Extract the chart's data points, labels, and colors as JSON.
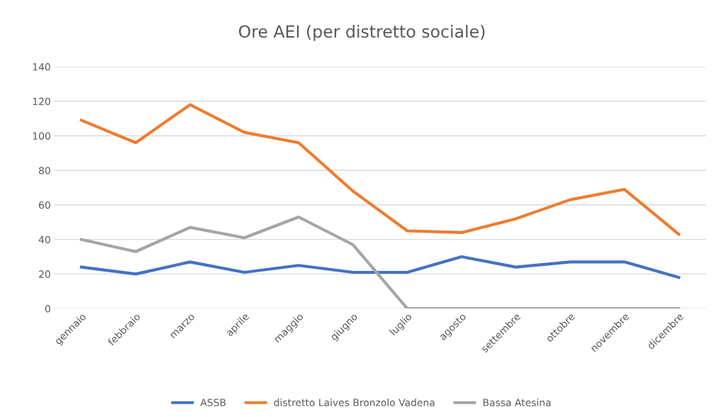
{
  "chart_data": {
    "type": "line",
    "title": "Ore AEI (per distretto sociale)",
    "categories": [
      "gennaio",
      "febbraio",
      "marzo",
      "aprile",
      "maggio",
      "giugno",
      "luglio",
      "agosto",
      "settembre",
      "ottobre",
      "novembre",
      "dicembre"
    ],
    "series": [
      {
        "name": "ASSB",
        "color": "#4472c4",
        "values": [
          24,
          20,
          27,
          21,
          25,
          21,
          21,
          30,
          24,
          27,
          27,
          18
        ]
      },
      {
        "name": "distretto Laives Bronzolo Vadena",
        "color": "#ed7d31",
        "values": [
          109,
          96,
          118,
          102,
          96,
          68,
          45,
          44,
          52,
          63,
          69,
          43
        ]
      },
      {
        "name": "Bassa Atesina",
        "color": "#a5a5a5",
        "values": [
          40,
          33,
          47,
          41,
          53,
          37,
          0,
          0,
          0,
          0,
          0,
          0
        ]
      }
    ],
    "ylim": [
      0,
      140
    ],
    "yticks": [
      0,
      20,
      40,
      60,
      80,
      100,
      120,
      140
    ],
    "grid": "y",
    "legend": "bottom",
    "marker": "none",
    "line_style": "solid"
  }
}
